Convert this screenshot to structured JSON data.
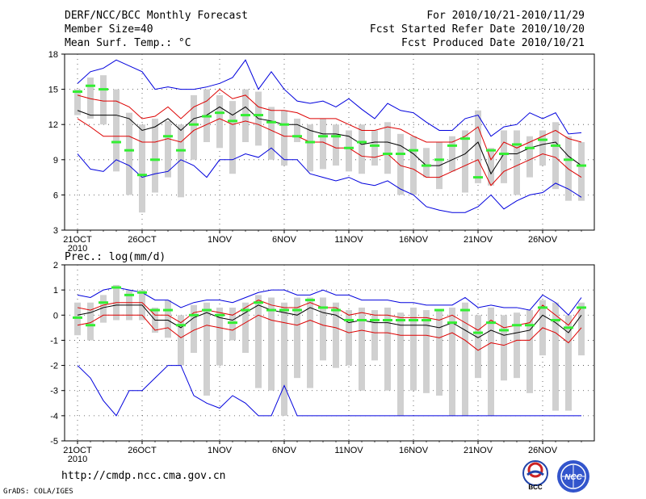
{
  "header": {
    "title": "DERF/NCC/BCC Monthly Forecast",
    "member_size": "Member Size=40",
    "variable": "Mean Surf. Temp.: °C",
    "period": "For 2010/10/21-2010/11/29",
    "started": "Fcst Started Refer Date 2010/10/20",
    "produced": "Fcst Produced Date 2010/10/21"
  },
  "footer": {
    "url": "http://cmdp.ncc.cma.gov.cn",
    "credit": "GrADS: COLA/IGES",
    "logo_left": "BCC",
    "logo_right": "NCC"
  },
  "colors": {
    "envelope": "#0000dd",
    "spread": "#dd0000",
    "ensemble_mean": "#000000",
    "member_mean": "#33ee33",
    "box": "#d0d0d0",
    "grid": "#444444"
  },
  "chart_data": [
    {
      "type": "line",
      "title": "Mean Surf. Temp.: °C",
      "days": 40,
      "x_tick_labels": [
        "21OCT",
        "26OCT",
        "1NOV",
        "6NOV",
        "11NOV",
        "16NOV",
        "21NOV",
        "26NOV"
      ],
      "x_tick_days": [
        1,
        6,
        12,
        17,
        22,
        27,
        32,
        37
      ],
      "year_label": "2010",
      "ylim": [
        3,
        18
      ],
      "y_ticks": [
        3,
        6,
        9,
        12,
        15,
        18
      ],
      "series": [
        {
          "name": "max",
          "role": "envelope",
          "values": [
            9.5,
            8.2,
            8.0,
            9.0,
            8.5,
            7.5,
            7.8,
            8.0,
            9.0,
            8.5,
            7.5,
            9.0,
            9.0,
            9.5,
            9.2,
            10.0,
            9.0,
            9.0,
            7.8,
            7.5,
            7.2,
            7.5,
            7.0,
            6.8,
            7.2,
            6.5,
            6.0,
            5.0,
            4.7,
            4.5,
            4.5,
            5.0,
            6.0,
            4.8,
            5.5,
            6.0,
            6.2,
            7.0,
            6.5,
            5.8
          ]
        },
        {
          "name": "min",
          "role": "envelope",
          "values": [
            15.5,
            16.5,
            16.8,
            17.5,
            17.0,
            16.5,
            15.0,
            15.2,
            15.0,
            15.0,
            15.2,
            15.5,
            16.0,
            17.5,
            15.0,
            16.5,
            15.0,
            14.0,
            13.8,
            14.0,
            13.5,
            14.2,
            13.3,
            12.5,
            13.8,
            13.2,
            13.0,
            12.2,
            11.5,
            11.5,
            12.5,
            12.8,
            11.0,
            11.8,
            12.0,
            13.0,
            12.5,
            13.0,
            11.2,
            11.3
          ]
        },
        {
          "name": "p75",
          "role": "spread",
          "values": [
            14.5,
            14.2,
            14.0,
            14.0,
            13.5,
            12.5,
            12.7,
            13.5,
            12.5,
            13.5,
            14.0,
            15.0,
            14.2,
            14.5,
            13.5,
            13.2,
            13.2,
            13.0,
            12.5,
            12.5,
            12.5,
            12.0,
            11.5,
            11.5,
            11.8,
            11.6,
            11.0,
            10.5,
            10.5,
            10.5,
            11.0,
            11.8,
            9.0,
            10.5,
            10.0,
            10.5,
            11.0,
            11.5,
            10.8,
            10.5
          ]
        },
        {
          "name": "p25",
          "role": "spread",
          "values": [
            12.5,
            11.8,
            11.0,
            11.0,
            11.0,
            10.5,
            10.5,
            10.8,
            10.5,
            11.5,
            12.0,
            12.5,
            12.0,
            12.3,
            12.0,
            11.5,
            11.0,
            11.0,
            10.5,
            10.5,
            10.0,
            10.0,
            9.3,
            9.2,
            9.5,
            8.5,
            8.2,
            7.5,
            7.5,
            8.0,
            8.5,
            9.0,
            6.8,
            8.0,
            8.5,
            9.0,
            9.5,
            9.2,
            8.2,
            7.5
          ]
        },
        {
          "name": "mean",
          "role": "mean",
          "values": [
            13.2,
            12.8,
            12.8,
            12.8,
            12.5,
            11.5,
            11.8,
            12.5,
            11.5,
            12.5,
            12.8,
            13.5,
            12.8,
            13.5,
            12.5,
            12.3,
            12.0,
            12.0,
            11.5,
            11.2,
            11.2,
            11.0,
            10.3,
            10.5,
            10.5,
            10.2,
            9.5,
            8.5,
            8.5,
            9.0,
            9.5,
            10.5,
            7.8,
            9.5,
            9.5,
            10.0,
            10.3,
            10.5,
            9.3,
            8.5
          ]
        },
        {
          "name": "member_median",
          "role": "marker",
          "values": [
            14.8,
            15.3,
            15.0,
            10.5,
            9.8,
            7.7,
            9.0,
            11.0,
            9.8,
            12.0,
            12.7,
            13.0,
            12.3,
            12.8,
            12.8,
            12.2,
            12.0,
            11.0,
            10.5,
            11.0,
            11.0,
            10.0,
            10.5,
            10.2,
            9.5,
            9.5,
            9.8,
            8.5,
            9.0,
            10.2,
            10.8,
            7.5,
            9.8,
            9.5,
            10.3,
            10.0,
            10.7,
            10.2,
            9.0,
            8.5
          ]
        },
        {
          "name": "box_top",
          "role": "box",
          "values": [
            15.0,
            16.0,
            16.2,
            15.0,
            13.0,
            12.0,
            12.5,
            12.3,
            12.0,
            14.5,
            15.0,
            14.5,
            14.0,
            15.0,
            14.8,
            13.5,
            13.2,
            12.5,
            12.0,
            12.5,
            12.0,
            11.5,
            12.0,
            11.5,
            12.2,
            11.2,
            11.0,
            10.0,
            10.5,
            11.0,
            11.5,
            13.2,
            10.0,
            11.5,
            11.5,
            11.0,
            11.5,
            12.2,
            11.0,
            10.5
          ]
        },
        {
          "name": "box_bottom",
          "role": "box",
          "values": [
            12.8,
            12.5,
            12.0,
            8.0,
            6.0,
            4.5,
            6.2,
            7.5,
            5.8,
            9.0,
            10.5,
            10.0,
            7.8,
            10.5,
            10.2,
            9.0,
            8.5,
            10.5,
            8.0,
            8.2,
            8.5,
            8.0,
            7.8,
            8.5,
            7.8,
            6.0,
            6.0,
            7.5,
            6.5,
            8.0,
            6.2,
            7.0,
            6.8,
            7.0,
            6.0,
            7.5,
            8.5,
            6.5,
            5.5,
            5.5
          ]
        }
      ]
    },
    {
      "type": "line",
      "title": "Prec.: log(mm/d)",
      "days": 40,
      "x_tick_labels": [
        "21OCT",
        "26OCT",
        "1NOV",
        "6NOV",
        "11NOV",
        "16NOV",
        "21NOV",
        "26NOV"
      ],
      "x_tick_days": [
        1,
        6,
        12,
        17,
        22,
        27,
        32,
        37
      ],
      "year_label": "2010",
      "ylim": [
        -5,
        2
      ],
      "y_ticks": [
        -5,
        -4,
        -3,
        -2,
        -1,
        0,
        1,
        2
      ],
      "series": [
        {
          "name": "max",
          "role": "envelope",
          "values": [
            0.8,
            0.7,
            1.0,
            1.1,
            1.0,
            0.9,
            0.6,
            0.6,
            0.3,
            0.5,
            0.6,
            0.6,
            0.5,
            0.7,
            0.9,
            1.0,
            1.0,
            0.8,
            0.8,
            1.0,
            0.8,
            0.8,
            0.6,
            0.6,
            0.6,
            0.5,
            0.5,
            0.4,
            0.4,
            0.4,
            0.7,
            0.3,
            0.4,
            0.3,
            0.3,
            0.2,
            0.8,
            0.5,
            0.0,
            0.7
          ]
        },
        {
          "name": "min",
          "role": "envelope",
          "values": [
            -2.0,
            -2.5,
            -3.4,
            -4.0,
            -3.0,
            -3.0,
            -2.5,
            -2.0,
            -2.0,
            -3.2,
            -3.5,
            -3.7,
            -3.2,
            -3.5,
            -4.0,
            -4.0,
            -2.8,
            -4.0,
            -4.0,
            -4.0,
            -4.0,
            -4.0,
            -4.0,
            -4.0,
            -4.0,
            -4.0,
            -4.0,
            -4.0,
            -4.0,
            -4.0,
            -4.0,
            -4.0,
            -4.0,
            -4.0,
            -4.0,
            -4.0,
            -4.0,
            -4.0,
            -4.0,
            -4.0
          ]
        },
        {
          "name": "p75",
          "role": "spread",
          "values": [
            0.3,
            0.2,
            0.4,
            0.5,
            0.5,
            0.5,
            0.0,
            0.0,
            -0.3,
            0.1,
            0.2,
            0.1,
            0.0,
            0.3,
            0.6,
            0.4,
            0.3,
            0.3,
            0.5,
            0.3,
            0.3,
            0.0,
            0.1,
            0.0,
            0.0,
            -0.1,
            -0.1,
            -0.1,
            -0.2,
            0.0,
            -0.3,
            -0.6,
            -0.2,
            -0.5,
            -0.4,
            -0.3,
            0.4,
            0.0,
            -0.4,
            0.3
          ]
        },
        {
          "name": "p25",
          "role": "spread",
          "values": [
            -0.4,
            -0.3,
            0.0,
            0.0,
            0.0,
            0.0,
            -0.6,
            -0.5,
            -0.9,
            -0.6,
            -0.4,
            -0.5,
            -0.6,
            -0.3,
            0.0,
            -0.2,
            -0.3,
            -0.4,
            -0.2,
            -0.4,
            -0.5,
            -0.7,
            -0.6,
            -0.7,
            -0.7,
            -0.8,
            -0.8,
            -0.8,
            -0.9,
            -0.7,
            -1.0,
            -1.4,
            -1.1,
            -1.2,
            -1.0,
            -1.0,
            -0.5,
            -0.7,
            -1.1,
            -0.5
          ]
        },
        {
          "name": "mean",
          "role": "mean",
          "values": [
            0.0,
            0.1,
            0.3,
            0.4,
            0.4,
            0.4,
            -0.2,
            -0.2,
            -0.5,
            -0.1,
            0.1,
            -0.1,
            -0.2,
            0.1,
            0.4,
            0.2,
            0.1,
            0.0,
            0.3,
            0.1,
            0.0,
            -0.3,
            -0.2,
            -0.3,
            -0.3,
            -0.4,
            -0.4,
            -0.4,
            -0.5,
            -0.3,
            -0.6,
            -0.9,
            -0.6,
            -0.8,
            -0.7,
            -0.6,
            0.0,
            -0.3,
            -0.7,
            0.0
          ]
        },
        {
          "name": "member_median",
          "role": "marker",
          "values": [
            -0.1,
            -0.4,
            0.5,
            1.1,
            0.8,
            0.9,
            0.2,
            0.2,
            -0.4,
            0.0,
            0.2,
            0.0,
            -0.3,
            0.2,
            0.5,
            0.2,
            0.2,
            0.2,
            0.6,
            0.3,
            0.2,
            -0.2,
            -0.2,
            -0.2,
            -0.2,
            -0.2,
            -0.2,
            -0.2,
            0.2,
            -0.3,
            0.2,
            -0.7,
            -0.3,
            -0.6,
            -0.4,
            -0.4,
            0.3,
            -0.2,
            -0.5,
            0.3
          ]
        },
        {
          "name": "box_top",
          "role": "box",
          "values": [
            0.5,
            0.5,
            0.8,
            1.2,
            1.0,
            1.0,
            0.3,
            0.6,
            0.0,
            0.4,
            0.5,
            0.3,
            0.3,
            0.5,
            0.8,
            0.7,
            0.5,
            0.7,
            0.7,
            0.7,
            0.5,
            0.2,
            0.3,
            0.2,
            0.3,
            0.1,
            0.3,
            0.2,
            0.2,
            0.3,
            0.5,
            0.0,
            0.3,
            0.0,
            0.1,
            0.2,
            0.6,
            0.5,
            0.0,
            0.5
          ]
        },
        {
          "name": "box_bottom",
          "role": "box",
          "values": [
            -0.8,
            -1.0,
            -0.3,
            -0.2,
            -0.2,
            -0.2,
            -0.7,
            -0.9,
            -2.0,
            -1.5,
            -3.2,
            -2.0,
            -1.0,
            -1.5,
            -2.9,
            -3.0,
            -4.0,
            -2.5,
            -2.9,
            -1.8,
            -2.1,
            -2.0,
            -3.0,
            -1.8,
            -3.0,
            -4.0,
            -3.0,
            -3.1,
            -3.2,
            -4.0,
            -4.0,
            -2.5,
            -4.0,
            -2.6,
            -2.5,
            -3.1,
            -1.6,
            -3.8,
            -3.8,
            -1.6
          ]
        }
      ]
    }
  ]
}
